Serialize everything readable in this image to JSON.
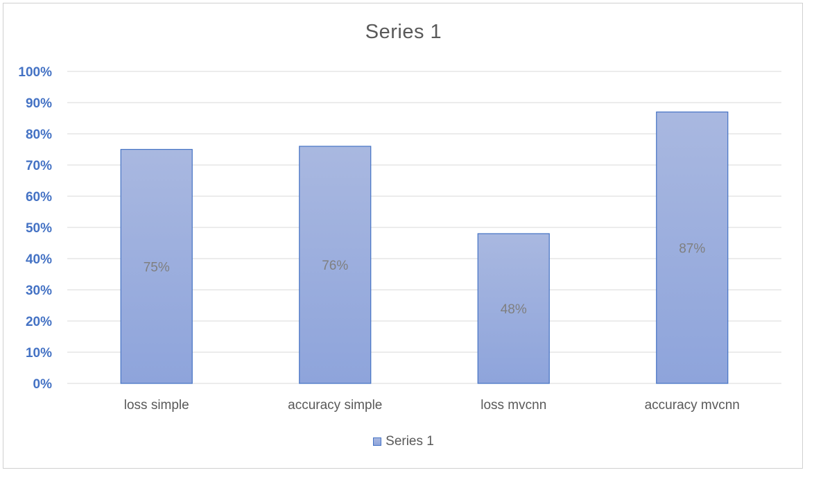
{
  "chart_data": {
    "type": "bar",
    "title": "Series 1",
    "categories": [
      "loss simple",
      "accuracy simple",
      "loss mvcnn",
      "accuracy mvcnn"
    ],
    "series": [
      {
        "name": "Series 1",
        "values": [
          0.75,
          0.76,
          0.48,
          0.87
        ]
      }
    ],
    "data_labels": [
      "75%",
      "76%",
      "48%",
      "87%"
    ],
    "ylim": [
      0,
      1
    ],
    "yticks": [
      "0%",
      "10%",
      "20%",
      "30%",
      "40%",
      "50%",
      "60%",
      "70%",
      "80%",
      "90%",
      "100%"
    ],
    "grid": true,
    "legend_position": "bottom",
    "colors": {
      "bar_top": "#a9b8e0",
      "bar_bottom": "#8ea4db",
      "bar_border": "#4472c4",
      "axis_text": "#4472c4"
    }
  }
}
